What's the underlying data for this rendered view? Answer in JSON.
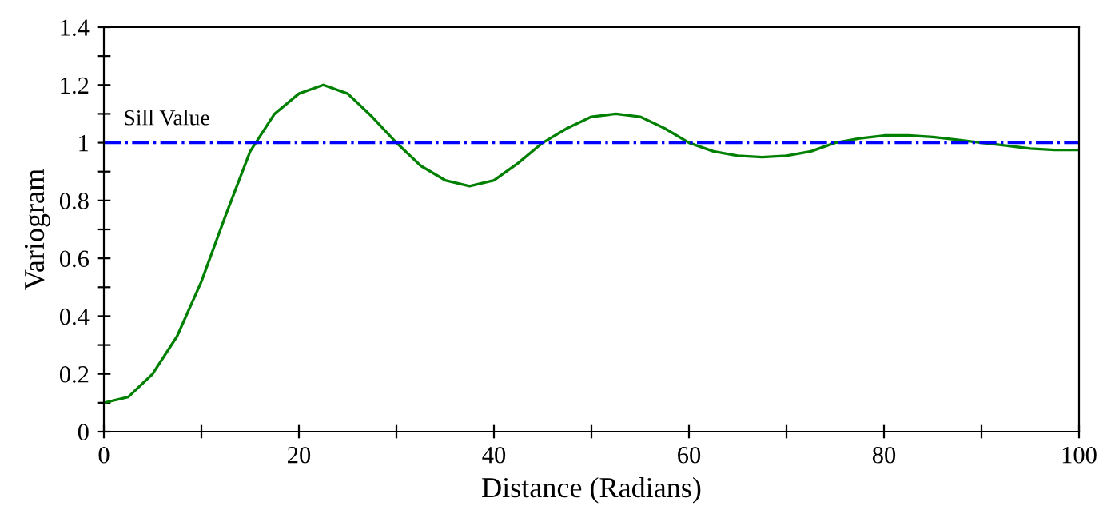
{
  "chart_data": {
    "type": "line",
    "xlabel": "Distance (Radians)",
    "ylabel": "Variogram",
    "x": [
      0,
      2.5,
      5,
      7.5,
      10,
      12.5,
      15,
      17.5,
      20,
      22.5,
      25,
      27.5,
      30,
      32.5,
      35,
      37.5,
      40,
      42.5,
      45,
      47.5,
      50,
      52.5,
      55,
      57.5,
      60,
      62.5,
      65,
      67.5,
      70,
      72.5,
      75,
      77.5,
      80,
      82.5,
      85,
      87.5,
      90,
      92.5,
      95,
      97.5,
      100
    ],
    "series": [
      {
        "color": "#008000",
        "values": [
          0.1,
          0.12,
          0.2,
          0.33,
          0.52,
          0.75,
          0.97,
          1.1,
          1.17,
          1.2,
          1.17,
          1.09,
          1.0,
          0.92,
          0.87,
          0.85,
          0.87,
          0.93,
          1.0,
          1.05,
          1.09,
          1.1,
          1.09,
          1.05,
          1.0,
          0.97,
          0.955,
          0.95,
          0.955,
          0.97,
          1.0,
          1.015,
          1.025,
          1.025,
          1.02,
          1.01,
          1.0,
          0.99,
          0.98,
          0.975,
          0.975
        ]
      }
    ],
    "xlim": [
      0,
      100
    ],
    "ylim": [
      0,
      1.4
    ],
    "xticks": [
      0,
      {
        "value": 10,
        "label": null
      },
      20,
      {
        "value": 30,
        "label": null
      },
      40,
      {
        "value": 50,
        "label": null
      },
      60,
      {
        "value": 70,
        "label": null
      },
      80,
      {
        "value": 90,
        "label": null
      },
      100
    ],
    "yticks": [
      0,
      {
        "value": 0.1,
        "label": null
      },
      0.2,
      {
        "value": 0.3,
        "label": null
      },
      0.4,
      {
        "value": 0.5,
        "label": null
      },
      0.6,
      {
        "value": 0.7,
        "label": null
      },
      0.8,
      {
        "value": 0.9,
        "label": null
      },
      1,
      {
        "value": 1.1,
        "label": null
      },
      1.2,
      {
        "value": 1.3,
        "label": null
      },
      1.4
    ],
    "ref_lines": [
      {
        "axis": "y",
        "value": 1,
        "label": "Sill Value",
        "color": "#0000ff",
        "line_style": "dashdot"
      }
    ],
    "grid": false,
    "legend": false,
    "marker": "none",
    "line_style": "solid"
  }
}
